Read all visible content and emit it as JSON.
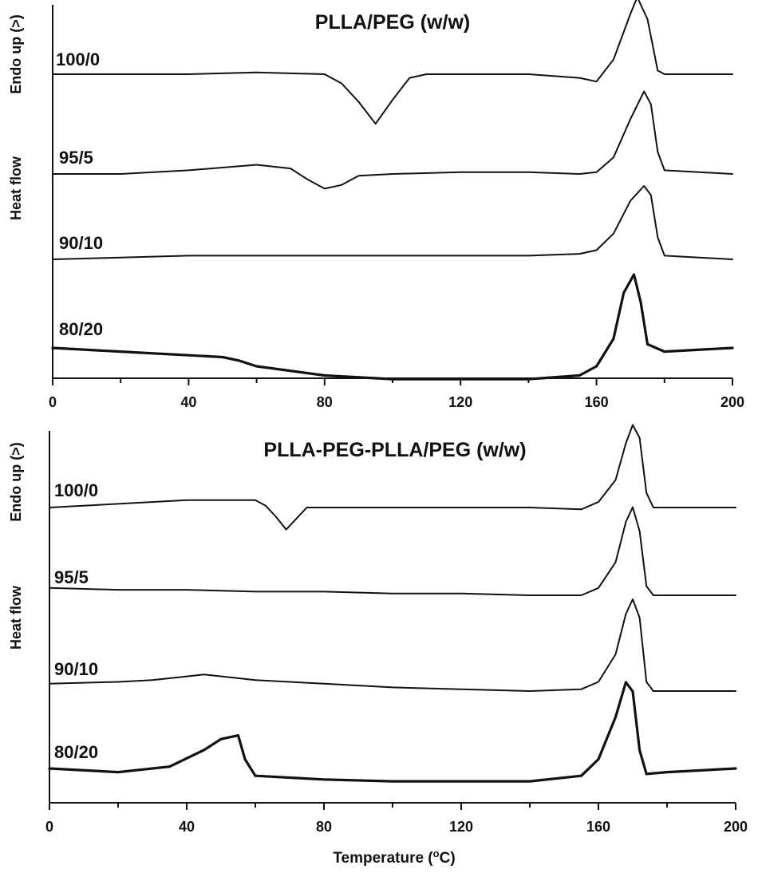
{
  "chart_data": [
    {
      "type": "line",
      "title": "PLLA/PEG (w/w)",
      "ylabel_parts": [
        "Heat flow",
        "Endo up (>)"
      ],
      "xlabel": "",
      "xlim": [
        0,
        200
      ],
      "xticks": [
        0,
        40,
        80,
        120,
        160,
        200
      ],
      "grid": false,
      "series": [
        {
          "name": "100/0",
          "x": [
            0,
            20,
            40,
            60,
            80,
            85,
            90,
            95,
            100,
            105,
            110,
            120,
            140,
            155,
            160,
            165,
            170,
            172,
            175,
            178,
            180,
            200
          ],
          "y": [
            0,
            0,
            0,
            0.01,
            0,
            -0.05,
            -0.15,
            -0.27,
            -0.14,
            -0.02,
            0,
            0,
            0,
            -0.02,
            -0.04,
            0.08,
            0.33,
            0.42,
            0.3,
            0.02,
            0,
            0
          ]
        },
        {
          "name": "95/5",
          "x": [
            0,
            20,
            40,
            60,
            70,
            75,
            80,
            85,
            90,
            100,
            120,
            140,
            155,
            160,
            165,
            170,
            174,
            176,
            178,
            180,
            200
          ],
          "y": [
            0,
            0,
            0.02,
            0.05,
            0.03,
            -0.03,
            -0.08,
            -0.06,
            -0.01,
            0,
            0.01,
            0.01,
            0,
            0.01,
            0.09,
            0.3,
            0.45,
            0.38,
            0.12,
            0.02,
            0
          ]
        },
        {
          "name": "90/10",
          "x": [
            0,
            20,
            40,
            60,
            80,
            100,
            120,
            140,
            155,
            160,
            165,
            170,
            174,
            176,
            178,
            180,
            200
          ],
          "y": [
            0,
            0.01,
            0.02,
            0.02,
            0.02,
            0.02,
            0.02,
            0.02,
            0.03,
            0.05,
            0.14,
            0.32,
            0.4,
            0.35,
            0.12,
            0.02,
            0
          ]
        },
        {
          "name": "80/20",
          "x": [
            0,
            20,
            40,
            50,
            55,
            60,
            80,
            100,
            120,
            140,
            155,
            160,
            165,
            168,
            171,
            173,
            175,
            180,
            200
          ],
          "y": [
            0,
            -0.02,
            -0.04,
            -0.05,
            -0.07,
            -0.1,
            -0.15,
            -0.17,
            -0.17,
            -0.17,
            -0.15,
            -0.1,
            0.05,
            0.3,
            0.4,
            0.25,
            0.02,
            -0.02,
            0
          ]
        }
      ]
    },
    {
      "type": "line",
      "title": "PLLA-PEG-PLLA/PEG (w/w)",
      "ylabel_parts": [
        "Heat flow",
        "Endo up (>)"
      ],
      "xlabel": "Temperature (°C)",
      "xlim": [
        0,
        200
      ],
      "xticks": [
        0,
        40,
        80,
        120,
        160,
        200
      ],
      "grid": false,
      "series": [
        {
          "name": "100/0",
          "x": [
            0,
            20,
            40,
            60,
            63,
            66,
            69,
            72,
            75,
            80,
            100,
            120,
            140,
            155,
            160,
            165,
            168,
            170,
            172,
            174,
            176,
            200
          ],
          "y": [
            0,
            0.02,
            0.04,
            0.04,
            0.01,
            -0.05,
            -0.12,
            -0.06,
            0,
            0,
            0,
            0,
            0,
            -0.01,
            0.03,
            0.15,
            0.35,
            0.45,
            0.38,
            0.08,
            0,
            0
          ]
        },
        {
          "name": "95/5",
          "x": [
            0,
            20,
            40,
            60,
            80,
            100,
            120,
            140,
            155,
            160,
            165,
            168,
            170,
            172,
            174,
            176,
            200
          ],
          "y": [
            0.04,
            0.03,
            0.03,
            0.02,
            0.02,
            0.01,
            0.01,
            0,
            0,
            0.04,
            0.18,
            0.4,
            0.48,
            0.35,
            0.05,
            0,
            0
          ]
        },
        {
          "name": "90/10",
          "x": [
            0,
            20,
            30,
            45,
            55,
            60,
            80,
            100,
            120,
            140,
            155,
            160,
            165,
            168,
            170,
            172,
            174,
            176,
            200
          ],
          "y": [
            0.04,
            0.05,
            0.06,
            0.09,
            0.07,
            0.06,
            0.04,
            0.02,
            0.01,
            0,
            0.01,
            0.05,
            0.2,
            0.42,
            0.5,
            0.4,
            0.05,
            0,
            0
          ]
        },
        {
          "name": "80/20",
          "x": [
            0,
            20,
            35,
            45,
            50,
            55,
            57,
            60,
            80,
            100,
            120,
            140,
            155,
            160,
            165,
            168,
            170,
            172,
            174,
            180,
            200
          ],
          "y": [
            0,
            -0.02,
            0.01,
            0.1,
            0.16,
            0.18,
            0.05,
            -0.04,
            -0.06,
            -0.07,
            -0.07,
            -0.07,
            -0.04,
            0.05,
            0.28,
            0.47,
            0.42,
            0.1,
            -0.03,
            -0.02,
            0
          ]
        }
      ]
    }
  ]
}
